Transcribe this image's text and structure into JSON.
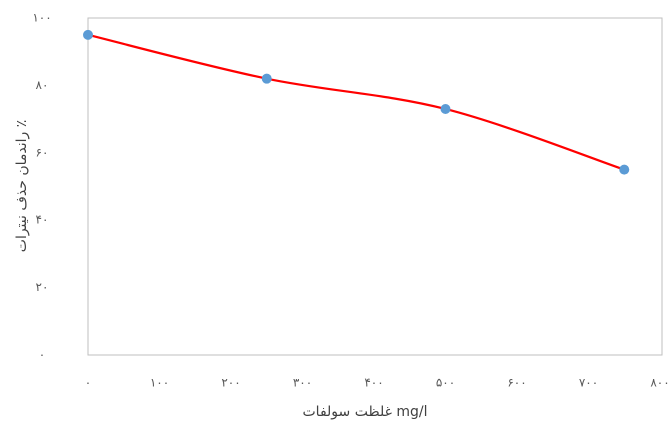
{
  "chart_data": {
    "type": "line",
    "xlabel": "غلظت سولفات mg/l",
    "ylabel": "راندمان حذف نیترات ٪",
    "x": [
      0,
      250,
      500,
      750
    ],
    "series": [
      {
        "name": "راندمان",
        "color": "#ff0000",
        "marker_color": "#5b9bd5",
        "values": [
          95,
          82,
          73,
          55
        ]
      }
    ],
    "xlim": [
      0,
      800
    ],
    "xticks": [
      {
        "value": 0,
        "label": "۰"
      },
      {
        "value": 100,
        "label": "۱۰۰"
      },
      {
        "value": 200,
        "label": "۲۰۰"
      },
      {
        "value": 300,
        "label": "۳۰۰"
      },
      {
        "value": 400,
        "label": "۴۰۰"
      },
      {
        "value": 500,
        "label": "۵۰۰"
      },
      {
        "value": 600,
        "label": "۶۰۰"
      },
      {
        "value": 700,
        "label": "۷۰۰"
      },
      {
        "value": 800,
        "label": "۸۰۰"
      }
    ],
    "ylim": [
      0,
      100
    ],
    "yticks": [
      {
        "value": 0,
        "label": "۰"
      },
      {
        "value": 20,
        "label": "۲۰"
      },
      {
        "value": 40,
        "label": "۴۰"
      },
      {
        "value": 60,
        "label": "۶۰"
      },
      {
        "value": 80,
        "label": "۸۰"
      },
      {
        "value": 100,
        "label": "۱۰۰"
      }
    ],
    "grid": false
  }
}
